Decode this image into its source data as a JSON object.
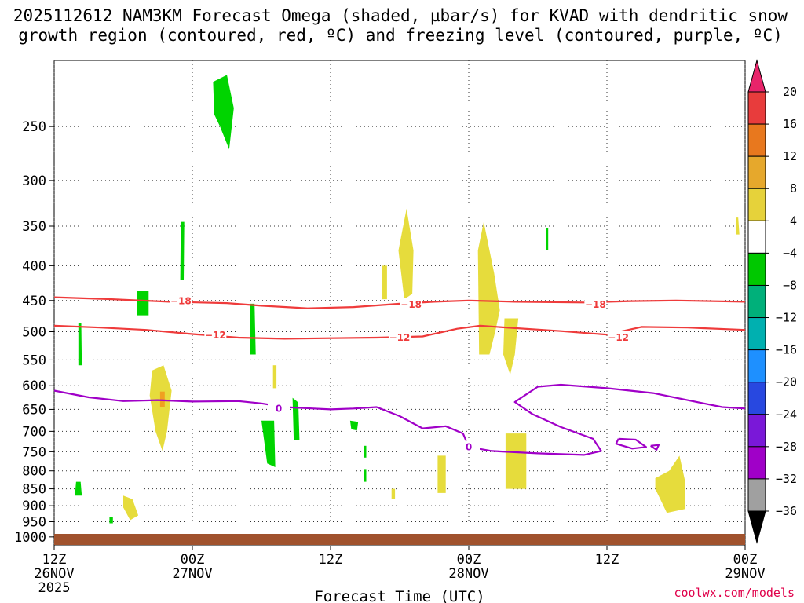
{
  "chart_data": {
    "type": "time-height cross section",
    "title_line1": "2025112612 NAM3KM Forecast Omega (shaded, µbar/s) for KVAD with dendritic snow",
    "title_line2": "growth region (contoured, red, ºC) and freezing level (contoured, purple, ºC)",
    "xlabel": "Forecast Time (UTC)",
    "credit": "coolwx.com/models",
    "x_range_hours": [
      0,
      60
    ],
    "p_range_hPa": [
      200,
      1030
    ],
    "x_ticks": [
      {
        "h": 0,
        "l1": "12Z",
        "l2": "26NOV",
        "l3": "2025"
      },
      {
        "h": 12,
        "l1": "00Z",
        "l2": "27NOV",
        "l3": ""
      },
      {
        "h": 24,
        "l1": "12Z",
        "l2": "",
        "l3": ""
      },
      {
        "h": 36,
        "l1": "00Z",
        "l2": "28NOV",
        "l3": ""
      },
      {
        "h": 48,
        "l1": "12Z",
        "l2": "",
        "l3": ""
      },
      {
        "h": 60,
        "l1": "00Z",
        "l2": "29NOV",
        "l3": ""
      }
    ],
    "y_ticks": [
      250,
      300,
      350,
      400,
      450,
      500,
      550,
      600,
      650,
      700,
      750,
      800,
      850,
      900,
      950,
      1000
    ],
    "colorbar": {
      "levels": [
        "20",
        "16",
        "12",
        "8",
        "4",
        "−4",
        "−8",
        "−12",
        "−16",
        "−20",
        "−24",
        "−28",
        "−32",
        "−36"
      ],
      "colors": [
        "#e8246a",
        "#e83c3c",
        "#e8781e",
        "#e6a82c",
        "#e6d23a",
        "#ffffff",
        "#00c800",
        "#00b07a",
        "#00b0b0",
        "#1e90ff",
        "#2848e0",
        "#7a18d8",
        "#a000c8",
        "#a0a0a0",
        "#000000"
      ]
    },
    "contours": [
      {
        "name": "-18",
        "label": "−18",
        "color": "#ef3b3b",
        "points": [
          [
            0,
            445
          ],
          [
            5,
            448
          ],
          [
            10,
            452
          ],
          [
            15,
            454
          ],
          [
            18,
            458
          ],
          [
            22,
            462
          ],
          [
            26,
            460
          ],
          [
            30,
            455
          ],
          [
            33,
            452
          ],
          [
            36,
            450
          ],
          [
            40,
            452
          ],
          [
            46,
            453
          ],
          [
            50,
            451
          ],
          [
            54,
            450
          ],
          [
            60,
            452
          ]
        ],
        "labels_at": [
          [
            11,
            451
          ],
          [
            31,
            456
          ],
          [
            47,
            456
          ]
        ]
      },
      {
        "name": "-12",
        "label": "−12",
        "color": "#ef3b3b",
        "points": [
          [
            0,
            490
          ],
          [
            4,
            493
          ],
          [
            8,
            497
          ],
          [
            12,
            504
          ],
          [
            16,
            510
          ],
          [
            20,
            512
          ],
          [
            24,
            511
          ],
          [
            28,
            510
          ],
          [
            32,
            508
          ],
          [
            35,
            495
          ],
          [
            37,
            490
          ],
          [
            40,
            494
          ],
          [
            44,
            499
          ],
          [
            48,
            505
          ],
          [
            51,
            492
          ],
          [
            55,
            493
          ],
          [
            60,
            497
          ]
        ],
        "labels_at": [
          [
            14,
            506
          ],
          [
            30,
            510
          ],
          [
            49,
            510
          ]
        ]
      },
      {
        "name": "0 main",
        "label": "0",
        "color": "#a000c8",
        "points": [
          [
            0,
            610
          ],
          [
            3,
            624
          ],
          [
            6,
            632
          ],
          [
            9,
            630
          ],
          [
            12,
            633
          ],
          [
            16,
            632
          ],
          [
            18,
            637
          ],
          [
            20,
            645
          ],
          [
            24,
            650
          ],
          [
            26,
            648
          ],
          [
            28,
            645
          ],
          [
            30,
            665
          ],
          [
            32,
            693
          ],
          [
            34,
            688
          ],
          [
            35.5,
            705
          ],
          [
            36,
            738
          ],
          [
            38,
            748
          ],
          [
            42,
            754
          ],
          [
            46,
            758
          ],
          [
            47.5,
            748
          ],
          [
            46.8,
            718
          ],
          [
            44,
            690
          ],
          [
            41.5,
            660
          ],
          [
            40,
            634
          ],
          [
            42,
            602
          ],
          [
            44,
            598
          ],
          [
            48,
            605
          ],
          [
            52,
            615
          ],
          [
            56,
            635
          ],
          [
            58,
            645
          ],
          [
            60,
            648
          ]
        ],
        "labels_at": [
          [
            19.5,
            648
          ],
          [
            36,
            738
          ]
        ]
      },
      {
        "name": "0 loop a",
        "label": "",
        "color": "#a000c8",
        "points": [
          [
            49,
            718
          ],
          [
            50.5,
            720
          ],
          [
            51.4,
            738
          ],
          [
            50.2,
            742
          ],
          [
            48.8,
            730
          ],
          [
            49,
            718
          ]
        ],
        "labels_at": []
      },
      {
        "name": "0 loop b",
        "label": "",
        "color": "#a000c8",
        "points": [
          [
            51.8,
            735
          ],
          [
            52.5,
            733
          ],
          [
            52.3,
            745
          ],
          [
            51.8,
            735
          ]
        ],
        "labels_at": []
      }
    ],
    "omega_regions": [
      {
        "color": "#00d400",
        "points": [
          [
            13.8,
            215
          ],
          [
            15.0,
            210
          ],
          [
            15.6,
            235
          ],
          [
            15.2,
            270
          ],
          [
            14.4,
            250
          ],
          [
            13.9,
            240
          ]
        ]
      },
      {
        "color": "#00d400",
        "points": [
          [
            11.0,
            345
          ],
          [
            11.3,
            345
          ],
          [
            11.25,
            420
          ],
          [
            10.95,
            420
          ]
        ]
      },
      {
        "color": "#00d400",
        "points": [
          [
            7.2,
            435
          ],
          [
            8.2,
            435
          ],
          [
            8.2,
            473
          ],
          [
            7.2,
            473
          ]
        ]
      },
      {
        "color": "#00d400",
        "points": [
          [
            2.1,
            485
          ],
          [
            2.35,
            485
          ],
          [
            2.4,
            560
          ],
          [
            2.1,
            560
          ]
        ]
      },
      {
        "color": "#00d400",
        "points": [
          [
            17.0,
            455
          ],
          [
            17.4,
            455
          ],
          [
            17.5,
            540
          ],
          [
            17.0,
            540
          ]
        ]
      },
      {
        "color": "#00d400",
        "points": [
          [
            18.0,
            675
          ],
          [
            19.1,
            675
          ],
          [
            19.2,
            790
          ],
          [
            18.5,
            780
          ]
        ]
      },
      {
        "color": "#00d400",
        "points": [
          [
            20.7,
            625
          ],
          [
            21.2,
            635
          ],
          [
            21.3,
            720
          ],
          [
            20.8,
            720
          ]
        ]
      },
      {
        "color": "#00d400",
        "points": [
          [
            25.7,
            675
          ],
          [
            26.4,
            678
          ],
          [
            26.3,
            698
          ],
          [
            25.8,
            695
          ]
        ]
      },
      {
        "color": "#00d400",
        "points": [
          [
            26.9,
            735
          ],
          [
            27.1,
            735
          ],
          [
            27.1,
            765
          ],
          [
            26.9,
            765
          ]
        ]
      },
      {
        "color": "#00d400",
        "points": [
          [
            26.9,
            795
          ],
          [
            27.1,
            795
          ],
          [
            27.1,
            830
          ],
          [
            26.9,
            830
          ]
        ]
      },
      {
        "color": "#00d400",
        "points": [
          [
            42.7,
            352
          ],
          [
            42.9,
            352
          ],
          [
            42.9,
            380
          ],
          [
            42.7,
            380
          ]
        ]
      },
      {
        "color": "#00d400",
        "points": [
          [
            1.9,
            830
          ],
          [
            2.3,
            830
          ],
          [
            2.4,
            870
          ],
          [
            1.8,
            870
          ]
        ]
      },
      {
        "color": "#00d400",
        "points": [
          [
            4.8,
            935
          ],
          [
            5.1,
            935
          ],
          [
            5.1,
            955
          ],
          [
            4.8,
            955
          ]
        ]
      },
      {
        "color": "#e6dc3c",
        "points": [
          [
            8.5,
            570
          ],
          [
            9.5,
            560
          ],
          [
            10.2,
            610
          ],
          [
            9.8,
            700
          ],
          [
            9.4,
            748
          ],
          [
            8.8,
            700
          ],
          [
            8.3,
            620
          ]
        ]
      },
      {
        "color": "#e6dc3c",
        "points": [
          [
            19.0,
            560
          ],
          [
            19.3,
            560
          ],
          [
            19.3,
            605
          ],
          [
            19.0,
            605
          ]
        ]
      },
      {
        "color": "#e6dc3c",
        "points": [
          [
            28.5,
            400
          ],
          [
            28.9,
            400
          ],
          [
            28.9,
            448
          ],
          [
            28.5,
            448
          ]
        ]
      },
      {
        "color": "#e6dc3c",
        "points": [
          [
            29.9,
            380
          ],
          [
            30.6,
            330
          ],
          [
            31.2,
            380
          ],
          [
            31.1,
            440
          ],
          [
            30.4,
            448
          ]
        ]
      },
      {
        "color": "#e6dc3c",
        "points": [
          [
            36.8,
            380
          ],
          [
            37.3,
            345
          ],
          [
            38.2,
            410
          ],
          [
            38.7,
            465
          ],
          [
            38.3,
            500
          ],
          [
            37.8,
            540
          ],
          [
            36.9,
            540
          ]
        ]
      },
      {
        "color": "#e6dc3c",
        "points": [
          [
            39.1,
            478
          ],
          [
            40.3,
            478
          ],
          [
            40.0,
            540
          ],
          [
            39.6,
            578
          ],
          [
            39.0,
            540
          ]
        ]
      },
      {
        "color": "#e6dc3c",
        "points": [
          [
            33.3,
            760
          ],
          [
            34.0,
            760
          ],
          [
            34.0,
            862
          ],
          [
            33.3,
            862
          ]
        ]
      },
      {
        "color": "#e6dc3c",
        "points": [
          [
            39.2,
            705
          ],
          [
            41.0,
            705
          ],
          [
            41.0,
            850
          ],
          [
            39.2,
            850
          ]
        ]
      },
      {
        "color": "#e6dc3c",
        "points": [
          [
            29.3,
            850
          ],
          [
            29.6,
            850
          ],
          [
            29.6,
            880
          ],
          [
            29.3,
            880
          ]
        ]
      },
      {
        "color": "#e6dc3c",
        "points": [
          [
            6.0,
            870
          ],
          [
            6.8,
            880
          ],
          [
            7.3,
            930
          ],
          [
            6.6,
            945
          ],
          [
            6.0,
            905
          ]
        ]
      },
      {
        "color": "#e6dc3c",
        "points": [
          [
            52.2,
            820
          ],
          [
            53.4,
            800
          ],
          [
            54.3,
            760
          ],
          [
            54.8,
            830
          ],
          [
            54.8,
            910
          ],
          [
            53.2,
            922
          ],
          [
            52.2,
            850
          ]
        ]
      },
      {
        "color": "#e6dc3c",
        "points": [
          [
            59.2,
            340
          ],
          [
            59.4,
            340
          ],
          [
            59.5,
            360
          ],
          [
            59.2,
            360
          ]
        ]
      },
      {
        "color": "#f0a020",
        "points": [
          [
            9.2,
            612
          ],
          [
            9.6,
            612
          ],
          [
            9.6,
            645
          ],
          [
            9.2,
            645
          ]
        ]
      }
    ]
  }
}
